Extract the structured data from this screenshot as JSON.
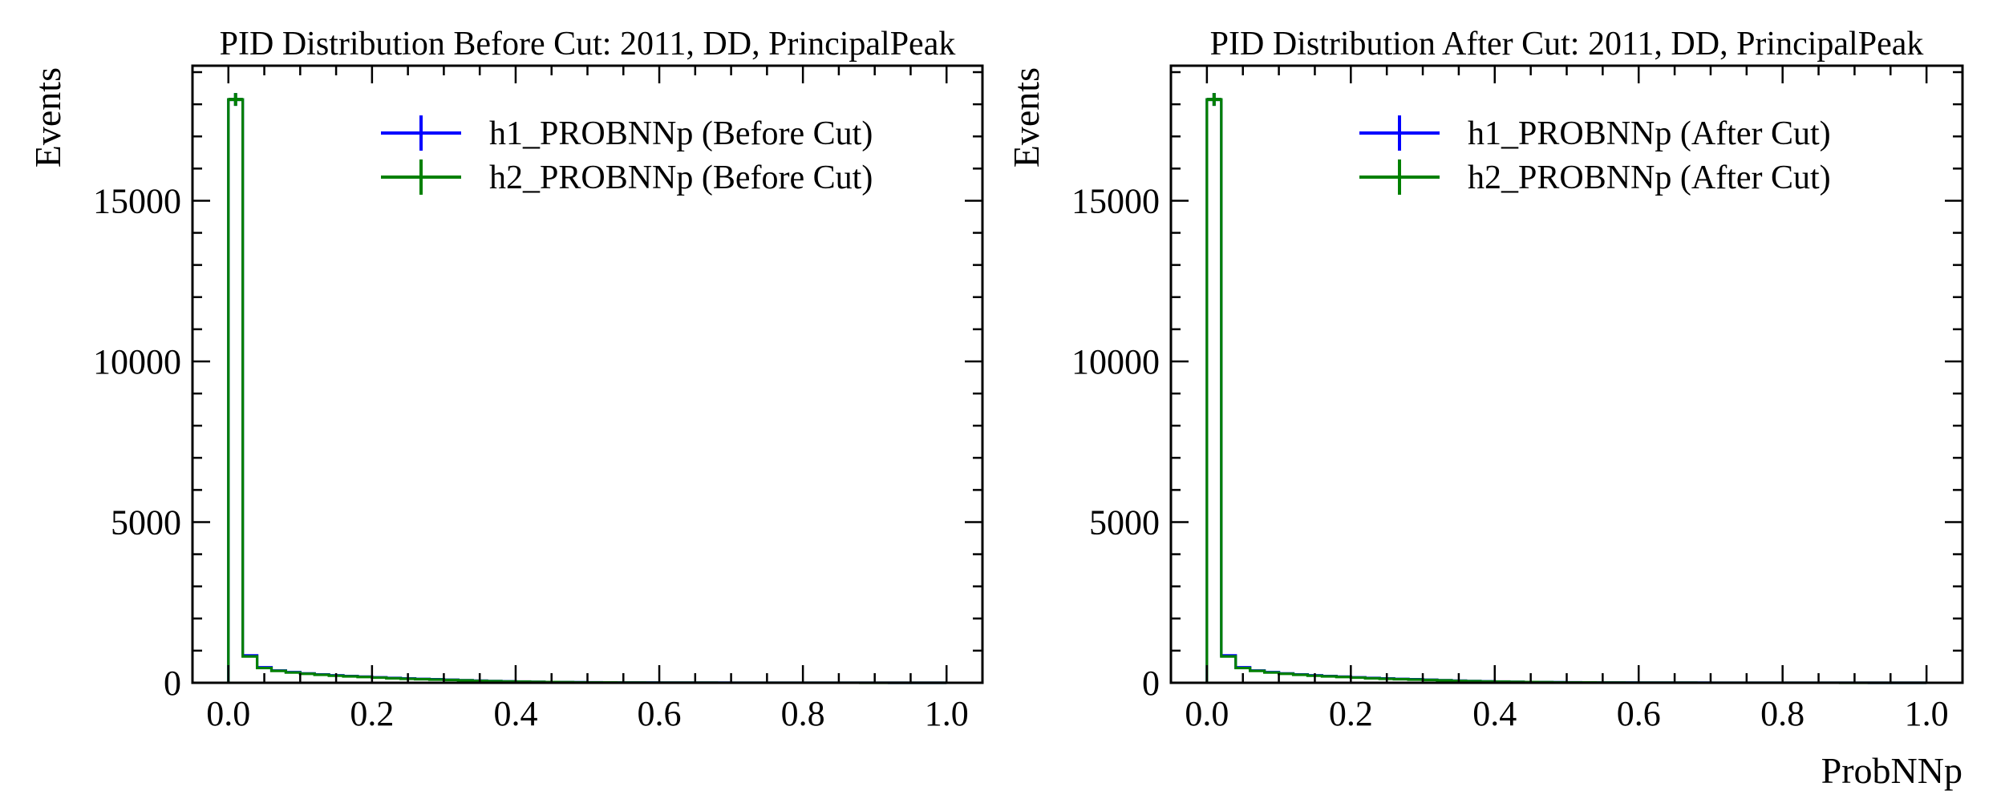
{
  "chart_data": [
    {
      "type": "histogram",
      "title": "PID Distribution Before Cut: 2011, DD, PrincipalPeak",
      "xlabel": "",
      "ylabel": "Events",
      "xlim": [
        -0.05,
        1.05
      ],
      "ylim": [
        0,
        19200
      ],
      "xticks": [
        0.0,
        0.2,
        0.4,
        0.6,
        0.8,
        1.0
      ],
      "xtick_labels": [
        "0.0",
        "0.2",
        "0.4",
        "0.6",
        "0.8",
        "1.0"
      ],
      "yticks": [
        0,
        5000,
        10000,
        15000
      ],
      "ytick_labels": [
        "0",
        "5000",
        "10000",
        "15000"
      ],
      "legend_position": "top-right",
      "bin_edges": [
        0.0,
        0.02,
        0.04,
        0.06,
        0.08,
        0.1,
        0.12,
        0.14,
        0.16,
        0.18,
        0.2,
        0.22,
        0.24,
        0.26,
        0.28,
        0.3,
        0.32,
        0.34,
        0.36,
        0.38,
        0.4,
        0.42,
        0.44,
        0.46,
        0.48,
        0.5,
        0.52,
        0.54,
        0.56,
        0.58,
        0.6,
        0.62,
        0.64,
        0.66,
        0.68,
        0.7,
        0.72,
        0.74,
        0.76,
        0.78,
        0.8,
        0.82,
        0.84,
        0.86,
        0.88,
        0.9,
        0.92,
        0.94,
        0.96,
        0.98,
        1.0
      ],
      "series": [
        {
          "name": "h1_PROBNNp (Before Cut)",
          "color": "#0000ff",
          "values": [
            18150,
            850,
            480,
            380,
            330,
            290,
            260,
            230,
            210,
            190,
            170,
            150,
            135,
            120,
            110,
            95,
            80,
            65,
            55,
            45,
            38,
            30,
            24,
            19,
            15,
            12,
            10,
            8,
            7,
            6,
            5,
            4,
            4,
            3,
            3,
            2,
            2,
            2,
            2,
            1,
            1,
            1,
            1,
            1,
            1,
            1,
            0,
            0,
            0,
            0
          ]
        },
        {
          "name": "h2_PROBNNp (Before Cut)",
          "color": "#008000",
          "values": [
            18150,
            820,
            460,
            370,
            320,
            280,
            250,
            220,
            200,
            180,
            160,
            140,
            125,
            112,
            100,
            88,
            75,
            60,
            50,
            42,
            35,
            28,
            22,
            18,
            14,
            11,
            9,
            7,
            6,
            5,
            4,
            4,
            3,
            3,
            2,
            2,
            2,
            1,
            1,
            1,
            1,
            1,
            1,
            1,
            0,
            0,
            0,
            0,
            0,
            0
          ]
        }
      ]
    },
    {
      "type": "histogram",
      "title": "PID Distribution After Cut: 2011, DD, PrincipalPeak",
      "xlabel": "ProbNNp",
      "ylabel": "Events",
      "xlim": [
        -0.05,
        1.05
      ],
      "ylim": [
        0,
        19200
      ],
      "xticks": [
        0.0,
        0.2,
        0.4,
        0.6,
        0.8,
        1.0
      ],
      "xtick_labels": [
        "0.0",
        "0.2",
        "0.4",
        "0.6",
        "0.8",
        "1.0"
      ],
      "yticks": [
        0,
        5000,
        10000,
        15000
      ],
      "ytick_labels": [
        "0",
        "5000",
        "10000",
        "15000"
      ],
      "legend_position": "top-right",
      "bin_edges": [
        0.0,
        0.02,
        0.04,
        0.06,
        0.08,
        0.1,
        0.12,
        0.14,
        0.16,
        0.18,
        0.2,
        0.22,
        0.24,
        0.26,
        0.28,
        0.3,
        0.32,
        0.34,
        0.36,
        0.38,
        0.4,
        0.42,
        0.44,
        0.46,
        0.48,
        0.5,
        0.52,
        0.54,
        0.56,
        0.58,
        0.6,
        0.62,
        0.64,
        0.66,
        0.68,
        0.7,
        0.72,
        0.74,
        0.76,
        0.78,
        0.8,
        0.82,
        0.84,
        0.86,
        0.88,
        0.9,
        0.92,
        0.94,
        0.96,
        0.98,
        1.0
      ],
      "series": [
        {
          "name": "h1_PROBNNp (After Cut)",
          "color": "#0000ff",
          "values": [
            18150,
            850,
            480,
            380,
            330,
            290,
            260,
            230,
            210,
            190,
            170,
            150,
            135,
            120,
            110,
            95,
            80,
            65,
            55,
            45,
            38,
            30,
            24,
            19,
            15,
            12,
            10,
            8,
            7,
            6,
            5,
            4,
            4,
            3,
            3,
            2,
            2,
            2,
            2,
            1,
            1,
            1,
            1,
            1,
            1,
            1,
            0,
            0,
            0,
            0
          ]
        },
        {
          "name": "h2_PROBNNp (After Cut)",
          "color": "#008000",
          "values": [
            18150,
            820,
            460,
            370,
            320,
            280,
            250,
            220,
            200,
            180,
            160,
            140,
            125,
            112,
            100,
            88,
            75,
            60,
            50,
            42,
            35,
            28,
            22,
            18,
            14,
            11,
            9,
            7,
            6,
            5,
            4,
            4,
            3,
            3,
            2,
            2,
            2,
            1,
            1,
            1,
            1,
            1,
            1,
            1,
            0,
            0,
            0,
            0,
            0,
            0
          ]
        }
      ]
    }
  ]
}
